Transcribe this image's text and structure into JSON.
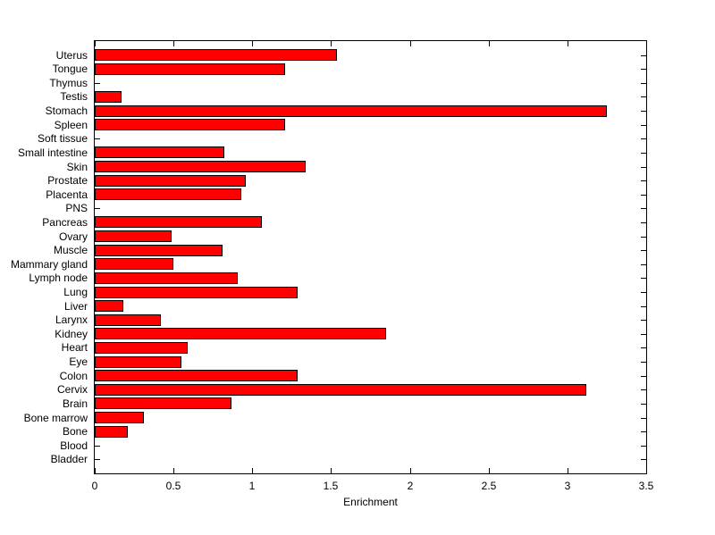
{
  "chart_data": {
    "type": "bar",
    "orientation": "horizontal",
    "title": "",
    "xlabel": "Enrichment",
    "ylabel": "",
    "categories": [
      "Uterus",
      "Tongue",
      "Thymus",
      "Testis",
      "Stomach",
      "Spleen",
      "Soft tissue",
      "Small intestine",
      "Skin",
      "Prostate",
      "Placenta",
      "PNS",
      "Pancreas",
      "Ovary",
      "Muscle",
      "Mammary gland",
      "Lymph node",
      "Lung",
      "Liver",
      "Larynx",
      "Kidney",
      "Heart",
      "Eye",
      "Colon",
      "Cervix",
      "Brain",
      "Bone marrow",
      "Bone",
      "Blood",
      "Bladder"
    ],
    "values": [
      1.54,
      1.21,
      0,
      0.17,
      3.25,
      1.21,
      0,
      0.82,
      1.34,
      0.96,
      0.93,
      0,
      1.06,
      0.49,
      0.81,
      0.5,
      0.91,
      1.29,
      0.18,
      0.42,
      1.85,
      0.59,
      0.55,
      1.29,
      3.12,
      0.87,
      0.31,
      0.21,
      0,
      0
    ],
    "xlim": [
      0,
      3.5
    ],
    "xticks": [
      0,
      0.5,
      1,
      1.5,
      2,
      2.5,
      3,
      3.5
    ],
    "xtick_labels": [
      "0",
      "0.5",
      "1",
      "1.5",
      "2",
      "2.5",
      "3",
      "3.5"
    ],
    "grid": false,
    "legend": null,
    "bar_color": "#FF0000",
    "bar_edge_color": "#000000",
    "axis_color": "#000000",
    "background_color": "#FFFFFF"
  }
}
